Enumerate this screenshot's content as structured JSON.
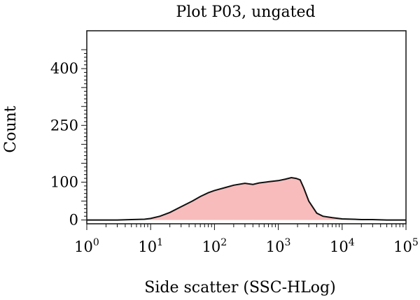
{
  "chart_data": {
    "type": "area",
    "title": "Plot P03, ungated",
    "xlabel": "Side scatter (SSC-HLog)",
    "ylabel": "Count",
    "x_scale": "log",
    "xlim": [
      1,
      100000
    ],
    "ylim": [
      -10,
      500
    ],
    "y_ticks": [
      "0",
      "100",
      "250",
      "400"
    ],
    "x_ticks": [
      {
        "base": "10",
        "exp": "0"
      },
      {
        "base": "10",
        "exp": "1"
      },
      {
        "base": "10",
        "exp": "2"
      },
      {
        "base": "10",
        "exp": "3"
      },
      {
        "base": "10",
        "exp": "4"
      },
      {
        "base": "10",
        "exp": "5"
      }
    ],
    "fill_color": "#f8bcbc",
    "line_color": "#111111",
    "series": [
      {
        "x": [
          1,
          2,
          3,
          5,
          8,
          10,
          14,
          20,
          30,
          45,
          60,
          80,
          100,
          150,
          200,
          300,
          400,
          500,
          700,
          1000,
          1300,
          1600,
          1900,
          2200,
          2500,
          3000,
          4000,
          5000,
          7000,
          10000,
          15000,
          20000,
          30000,
          50000,
          100000
        ],
        "y": [
          0,
          0,
          0,
          1,
          2,
          4,
          10,
          20,
          35,
          50,
          62,
          72,
          78,
          86,
          92,
          97,
          94,
          98,
          101,
          104,
          108,
          112,
          110,
          106,
          85,
          50,
          18,
          10,
          6,
          3,
          2,
          1,
          1,
          0,
          0
        ]
      }
    ]
  }
}
